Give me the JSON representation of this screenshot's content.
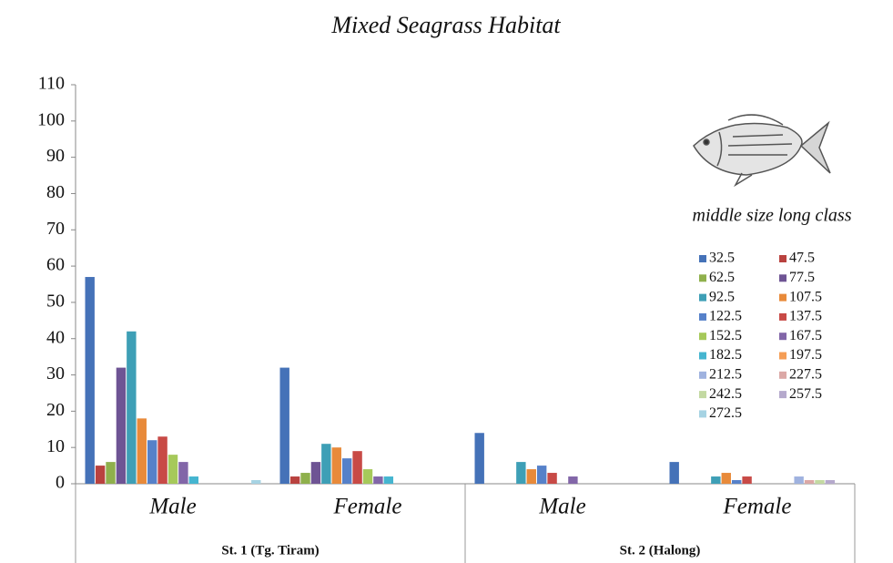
{
  "chart_data": {
    "type": "bar",
    "title": "Mixed Seagrass Habitat",
    "categories": [
      "Male",
      "Female",
      "Male",
      "Female"
    ],
    "group_labels": [
      "St. 1 (Tg. Tiram)",
      "St. 2 (Halong)"
    ],
    "legend_title": "middle size long class",
    "legend_position": "right",
    "ylim": [
      0,
      110
    ],
    "yticks": [
      0,
      10,
      20,
      30,
      40,
      50,
      60,
      70,
      80,
      90,
      100,
      110
    ],
    "grid": false,
    "series": [
      {
        "name": "32.5",
        "color": "#4572b8",
        "values": [
          57,
          32,
          14,
          6
        ]
      },
      {
        "name": "47.5",
        "color": "#b9423f",
        "values": [
          5,
          2,
          0,
          0
        ]
      },
      {
        "name": "62.5",
        "color": "#8fb04c",
        "values": [
          6,
          3,
          0,
          0
        ]
      },
      {
        "name": "77.5",
        "color": "#6e5494",
        "values": [
          32,
          6,
          0,
          0
        ]
      },
      {
        "name": "92.5",
        "color": "#3e9fb6",
        "values": [
          42,
          11,
          6,
          2
        ]
      },
      {
        "name": "107.5",
        "color": "#e88a3a",
        "values": [
          18,
          10,
          4,
          3
        ]
      },
      {
        "name": "122.5",
        "color": "#5681c9",
        "values": [
          12,
          7,
          5,
          1
        ]
      },
      {
        "name": "137.5",
        "color": "#c84a46",
        "values": [
          13,
          9,
          3,
          2
        ]
      },
      {
        "name": "152.5",
        "color": "#a6c95a",
        "values": [
          8,
          4,
          0,
          0
        ]
      },
      {
        "name": "167.5",
        "color": "#8266a8",
        "values": [
          6,
          2,
          2,
          0
        ]
      },
      {
        "name": "182.5",
        "color": "#45b5d0",
        "values": [
          2,
          2,
          0,
          0
        ]
      },
      {
        "name": "197.5",
        "color": "#f59d55",
        "values": [
          0,
          0,
          0,
          0
        ]
      },
      {
        "name": "212.5",
        "color": "#9fb2df",
        "values": [
          0,
          0,
          0,
          2
        ]
      },
      {
        "name": "227.5",
        "color": "#dba8a6",
        "values": [
          0,
          0,
          0,
          1
        ]
      },
      {
        "name": "242.5",
        "color": "#c3d9a2",
        "values": [
          0,
          0,
          0,
          1
        ]
      },
      {
        "name": "257.5",
        "color": "#b5a9cc",
        "values": [
          0,
          0,
          0,
          1
        ]
      },
      {
        "name": "272.5",
        "color": "#a6d3e3",
        "values": [
          1,
          0,
          0,
          0
        ]
      }
    ]
  }
}
